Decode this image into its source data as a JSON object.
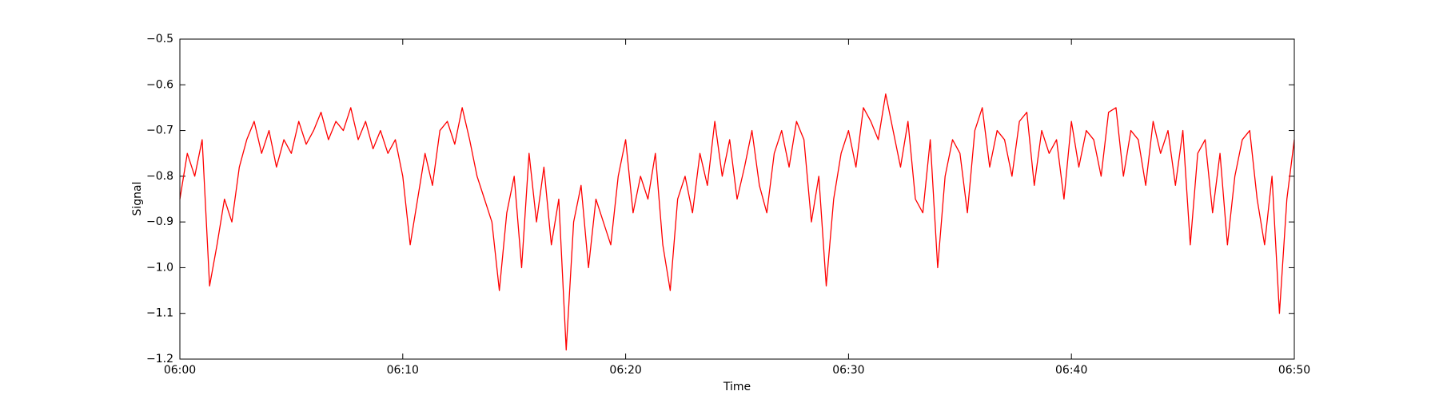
{
  "chart_data": {
    "type": "line",
    "xlabel": "Time",
    "ylabel": "Signal",
    "color": "#ff0000",
    "x": [
      "06:00:00",
      "06:00:20",
      "06:00:40",
      "06:01:00",
      "06:01:20",
      "06:01:40",
      "06:02:00",
      "06:02:20",
      "06:02:40",
      "06:03:00",
      "06:03:20",
      "06:03:40",
      "06:04:00",
      "06:04:20",
      "06:04:40",
      "06:05:00",
      "06:05:20",
      "06:05:40",
      "06:06:00",
      "06:06:20",
      "06:06:40",
      "06:07:00",
      "06:07:20",
      "06:07:40",
      "06:08:00",
      "06:08:20",
      "06:08:40",
      "06:09:00",
      "06:09:20",
      "06:09:40",
      "06:10:00",
      "06:10:20",
      "06:10:40",
      "06:11:00",
      "06:11:20",
      "06:11:40",
      "06:12:00",
      "06:12:20",
      "06:12:40",
      "06:13:00",
      "06:13:20",
      "06:13:40",
      "06:14:00",
      "06:14:20",
      "06:14:40",
      "06:15:00",
      "06:15:20",
      "06:15:40",
      "06:16:00",
      "06:16:20",
      "06:16:40",
      "06:17:00",
      "06:17:20",
      "06:17:40",
      "06:18:00",
      "06:18:20",
      "06:18:40",
      "06:19:00",
      "06:19:20",
      "06:19:40",
      "06:20:00",
      "06:20:20",
      "06:20:40",
      "06:21:00",
      "06:21:20",
      "06:21:40",
      "06:22:00",
      "06:22:20",
      "06:22:40",
      "06:23:00",
      "06:23:20",
      "06:23:40",
      "06:24:00",
      "06:24:20",
      "06:24:40",
      "06:25:00",
      "06:25:20",
      "06:25:40",
      "06:26:00",
      "06:26:20",
      "06:26:40",
      "06:27:00",
      "06:27:20",
      "06:27:40",
      "06:28:00",
      "06:28:20",
      "06:28:40",
      "06:29:00",
      "06:29:20",
      "06:29:40",
      "06:30:00",
      "06:30:20",
      "06:30:40",
      "06:31:00",
      "06:31:20",
      "06:31:40",
      "06:32:00",
      "06:32:20",
      "06:32:40",
      "06:33:00",
      "06:33:20",
      "06:33:40",
      "06:34:00",
      "06:34:20",
      "06:34:40",
      "06:35:00",
      "06:35:20",
      "06:35:40",
      "06:36:00",
      "06:36:20",
      "06:36:40",
      "06:37:00",
      "06:37:20",
      "06:37:40",
      "06:38:00",
      "06:38:20",
      "06:38:40",
      "06:39:00",
      "06:39:20",
      "06:39:40",
      "06:40:00",
      "06:40:20",
      "06:40:40",
      "06:41:00",
      "06:41:20",
      "06:41:40",
      "06:42:00",
      "06:42:20",
      "06:42:40",
      "06:43:00",
      "06:43:20",
      "06:43:40",
      "06:44:00",
      "06:44:20",
      "06:44:40",
      "06:45:00",
      "06:45:20",
      "06:45:40",
      "06:46:00",
      "06:46:20",
      "06:46:40",
      "06:47:00",
      "06:47:20",
      "06:47:40",
      "06:48:00",
      "06:48:20",
      "06:48:40",
      "06:49:00",
      "06:49:20",
      "06:49:40",
      "06:50:00"
    ],
    "values": [
      -0.85,
      -0.75,
      -0.8,
      -0.72,
      -1.04,
      -0.95,
      -0.85,
      -0.9,
      -0.78,
      -0.72,
      -0.68,
      -0.75,
      -0.7,
      -0.78,
      -0.72,
      -0.75,
      -0.68,
      -0.73,
      -0.7,
      -0.66,
      -0.72,
      -0.68,
      -0.7,
      -0.65,
      -0.72,
      -0.68,
      -0.74,
      -0.7,
      -0.75,
      -0.72,
      -0.8,
      -0.95,
      -0.85,
      -0.75,
      -0.82,
      -0.7,
      -0.68,
      -0.73,
      -0.65,
      -0.72,
      -0.8,
      -0.85,
      -0.9,
      -1.05,
      -0.88,
      -0.8,
      -1.0,
      -0.75,
      -0.9,
      -0.78,
      -0.95,
      -0.85,
      -1.18,
      -0.9,
      -0.82,
      -1.0,
      -0.85,
      -0.9,
      -0.95,
      -0.8,
      -0.72,
      -0.88,
      -0.8,
      -0.85,
      -0.75,
      -0.95,
      -1.05,
      -0.85,
      -0.8,
      -0.88,
      -0.75,
      -0.82,
      -0.68,
      -0.8,
      -0.72,
      -0.85,
      -0.78,
      -0.7,
      -0.82,
      -0.88,
      -0.75,
      -0.7,
      -0.78,
      -0.68,
      -0.72,
      -0.9,
      -0.8,
      -1.04,
      -0.85,
      -0.75,
      -0.7,
      -0.78,
      -0.65,
      -0.68,
      -0.72,
      -0.62,
      -0.7,
      -0.78,
      -0.68,
      -0.85,
      -0.88,
      -0.72,
      -1.0,
      -0.8,
      -0.72,
      -0.75,
      -0.88,
      -0.7,
      -0.65,
      -0.78,
      -0.7,
      -0.72,
      -0.8,
      -0.68,
      -0.66,
      -0.82,
      -0.7,
      -0.75,
      -0.72,
      -0.85,
      -0.68,
      -0.78,
      -0.7,
      -0.72,
      -0.8,
      -0.66,
      -0.65,
      -0.8,
      -0.7,
      -0.72,
      -0.82,
      -0.68,
      -0.75,
      -0.7,
      -0.82,
      -0.7,
      -0.95,
      -0.75,
      -0.72,
      -0.88,
      -0.75,
      -0.95,
      -0.8,
      -0.72,
      -0.7,
      -0.85,
      -0.95,
      -0.8,
      -1.1,
      -0.85,
      -0.72
    ],
    "xlim": [
      "06:00:00",
      "06:50:00"
    ],
    "xticks": [
      {
        "value": "06:00:00",
        "label": "06:00"
      },
      {
        "value": "06:10:00",
        "label": "06:10"
      },
      {
        "value": "06:20:00",
        "label": "06:20"
      },
      {
        "value": "06:30:00",
        "label": "06:30"
      },
      {
        "value": "06:40:00",
        "label": "06:40"
      },
      {
        "value": "06:50:00",
        "label": "06:50"
      }
    ],
    "ylim": [
      -1.2,
      -0.5
    ],
    "yticks": [
      {
        "value": -1.2,
        "label": "−1.2"
      },
      {
        "value": -1.1,
        "label": "−1.1"
      },
      {
        "value": -1.0,
        "label": "−1.0"
      },
      {
        "value": -0.9,
        "label": "−0.9"
      },
      {
        "value": -0.8,
        "label": "−0.8"
      },
      {
        "value": -0.7,
        "label": "−0.7"
      },
      {
        "value": -0.6,
        "label": "−0.6"
      },
      {
        "value": -0.5,
        "label": "−0.5"
      }
    ]
  }
}
